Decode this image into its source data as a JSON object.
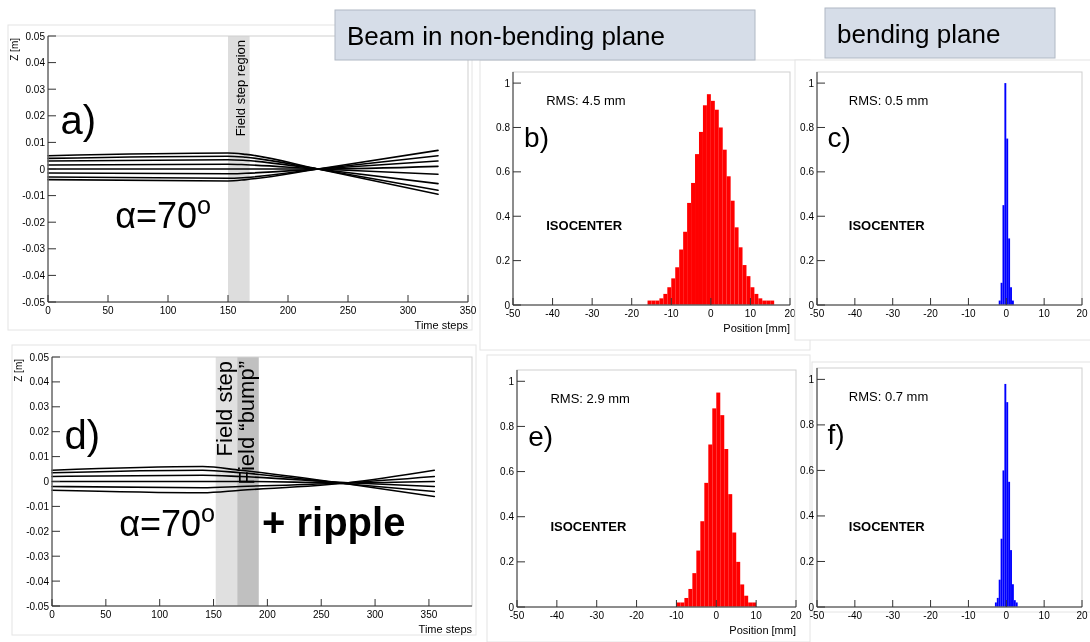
{
  "chart_data": [
    {
      "type": "line",
      "xlabel": "Time steps",
      "ylabel": "Z [m]",
      "xlim": [
        0,
        350
      ],
      "xticks": [
        0,
        50,
        100,
        150,
        200,
        250,
        300,
        350
      ],
      "ylim": [
        -0.05,
        0.05
      ],
      "yticks": [
        -0.05,
        -0.04,
        -0.03,
        -0.02,
        -0.01,
        0,
        0.01,
        0.02,
        0.03,
        0.04,
        0.05
      ],
      "x": [
        0,
        150,
        165,
        225,
        325
      ],
      "series": [
        {
          "color": "#000000",
          "values": [
            0.005,
            0.006,
            0.0055,
            0,
            -0.0095
          ]
        },
        {
          "color": "#000000",
          "values": [
            0.004,
            0.0048,
            0.0044,
            0,
            -0.008
          ]
        },
        {
          "color": "#000000",
          "values": [
            0.003,
            0.0035,
            0.0032,
            0,
            -0.0055
          ]
        },
        {
          "color": "#000000",
          "values": [
            0.0015,
            0.0018,
            0.0016,
            0,
            -0.002
          ]
        },
        {
          "color": "#000000",
          "values": [
            0,
            0,
            0,
            0,
            0.001
          ]
        },
        {
          "color": "#000000",
          "values": [
            -0.0015,
            -0.0018,
            -0.0016,
            0,
            0.003
          ]
        },
        {
          "color": "#000000",
          "values": [
            -0.003,
            -0.0035,
            -0.0032,
            0,
            0.005
          ]
        },
        {
          "color": "#000000",
          "values": [
            -0.004,
            -0.0045,
            -0.004,
            0,
            0.007
          ]
        }
      ],
      "bands": [
        {
          "axis": "x",
          "from": 150,
          "to": 168,
          "label": "Field step region",
          "color": "#dddddd"
        }
      ],
      "annotations": [
        "a)",
        "α=70$^{o}$"
      ]
    },
    {
      "type": "histogram",
      "title": "Beam in non-bending plane",
      "xlabel": "Position [mm]",
      "xlim": [
        -50,
        20
      ],
      "xticks": [
        -50,
        -40,
        -30,
        -20,
        -10,
        0,
        10,
        20
      ],
      "ylim": [
        0,
        1.05
      ],
      "yticks": [
        0,
        0.2,
        0.4,
        0.6,
        0.8,
        1
      ],
      "color": "#ff0000",
      "bins": [
        -16,
        -15,
        -14,
        -13,
        -12,
        -11,
        -10,
        -9,
        -8,
        -7,
        -6,
        -5,
        -4,
        -3,
        -2,
        -1,
        0,
        1,
        2,
        3,
        4,
        5,
        6,
        7,
        8,
        9,
        10,
        11,
        12,
        13,
        14,
        15,
        16
      ],
      "values": [
        0.02,
        0.02,
        0.02,
        0.03,
        0.05,
        0.08,
        0.12,
        0.17,
        0.25,
        0.33,
        0.46,
        0.55,
        0.68,
        0.78,
        0.9,
        0.95,
        0.92,
        0.88,
        0.8,
        0.7,
        0.58,
        0.47,
        0.35,
        0.26,
        0.18,
        0.13,
        0.08,
        0.05,
        0.03,
        0.02,
        0.02,
        0.02
      ],
      "annotations": [
        "RMS: 4.5 mm",
        "b)",
        "ISOCENTER"
      ]
    },
    {
      "type": "histogram",
      "title": "bending plane",
      "xlim": [
        -50,
        20
      ],
      "xticks": [
        -50,
        -40,
        -30,
        -20,
        -10,
        0,
        10,
        20
      ],
      "ylim": [
        0,
        1.05
      ],
      "yticks": [
        0,
        0.2,
        0.4,
        0.6,
        0.8,
        1
      ],
      "color": "#0000ff",
      "bins": [
        -2,
        -1.5,
        -1,
        -0.5,
        0,
        0.5,
        1,
        1.5,
        2
      ],
      "values": [
        0.02,
        0.1,
        0.45,
        1,
        0.75,
        0.3,
        0.08,
        0.02
      ],
      "annotations": [
        "RMS: 0.5 mm",
        "c)",
        "ISOCENTER"
      ]
    },
    {
      "type": "line",
      "xlabel": "Time steps",
      "ylabel": "Z [m]",
      "xlim": [
        0,
        390
      ],
      "xticks": [
        0,
        50,
        100,
        150,
        200,
        250,
        300,
        350
      ],
      "ylim": [
        -0.05,
        0.05
      ],
      "yticks": [
        -0.05,
        -0.04,
        -0.03,
        -0.02,
        -0.01,
        0,
        0.01,
        0.02,
        0.03,
        0.04,
        0.05
      ],
      "x": [
        0,
        140,
        175,
        275,
        355
      ],
      "series": [
        {
          "color": "#000000",
          "values": [
            0.0045,
            0.006,
            0.0045,
            -0.001,
            -0.006
          ]
        },
        {
          "color": "#000000",
          "values": [
            0.0035,
            0.0045,
            0.0035,
            -0.001,
            -0.004
          ]
        },
        {
          "color": "#000000",
          "values": [
            0.002,
            0.0025,
            0.002,
            -0.0005,
            -0.002
          ]
        },
        {
          "color": "#000000",
          "values": [
            0,
            0,
            0,
            -0.0005,
            0
          ]
        },
        {
          "color": "#000000",
          "values": [
            -0.002,
            -0.0025,
            -0.002,
            -0.0005,
            0.002
          ]
        },
        {
          "color": "#000000",
          "values": [
            -0.0035,
            -0.0045,
            -0.0035,
            -0.0005,
            0.0045
          ]
        }
      ],
      "bands": [
        {
          "axis": "x",
          "from": 152,
          "to": 172,
          "label": "Field step",
          "color": "#e0e0e0"
        },
        {
          "axis": "x",
          "from": 172,
          "to": 192,
          "label": "Field “bump”",
          "color": "#c0c0c0"
        }
      ],
      "annotations": [
        "d)",
        "α=70$^{o}$",
        "+ ripple"
      ]
    },
    {
      "type": "histogram",
      "xlabel": "Position [mm]",
      "xlim": [
        -50,
        20
      ],
      "xticks": [
        -50,
        -40,
        -30,
        -20,
        -10,
        0,
        10,
        20
      ],
      "ylim": [
        0,
        1.05
      ],
      "yticks": [
        0,
        0.2,
        0.4,
        0.6,
        0.8,
        1
      ],
      "color": "#ff0000",
      "bins": [
        -10,
        -9,
        -8,
        -7,
        -6,
        -5,
        -4,
        -3,
        -2,
        -1,
        0,
        1,
        2,
        3,
        4,
        5,
        6,
        7,
        8,
        9,
        10
      ],
      "values": [
        0.02,
        0.02,
        0.04,
        0.08,
        0.15,
        0.25,
        0.38,
        0.55,
        0.72,
        0.88,
        0.95,
        0.85,
        0.7,
        0.5,
        0.33,
        0.2,
        0.1,
        0.05,
        0.02,
        0.02
      ],
      "annotations": [
        "RMS: 2.9 mm",
        "e)",
        "ISOCENTER"
      ]
    },
    {
      "type": "histogram",
      "xlim": [
        -50,
        20
      ],
      "xticks": [
        -50,
        -40,
        -30,
        -20,
        -10,
        0,
        10,
        20
      ],
      "ylim": [
        0,
        1.05
      ],
      "yticks": [
        0,
        0.2,
        0.4,
        0.6,
        0.8,
        1
      ],
      "color": "#0000ff",
      "bins": [
        -3,
        -2.5,
        -2,
        -1.5,
        -1,
        -0.5,
        0,
        0.5,
        1,
        1.5,
        2,
        2.5,
        3
      ],
      "values": [
        0.02,
        0.04,
        0.12,
        0.3,
        0.6,
        0.98,
        0.9,
        0.55,
        0.25,
        0.1,
        0.03,
        0.02
      ],
      "annotations": [
        "RMS: 0.7 mm",
        "f)",
        "ISOCENTER"
      ]
    }
  ]
}
